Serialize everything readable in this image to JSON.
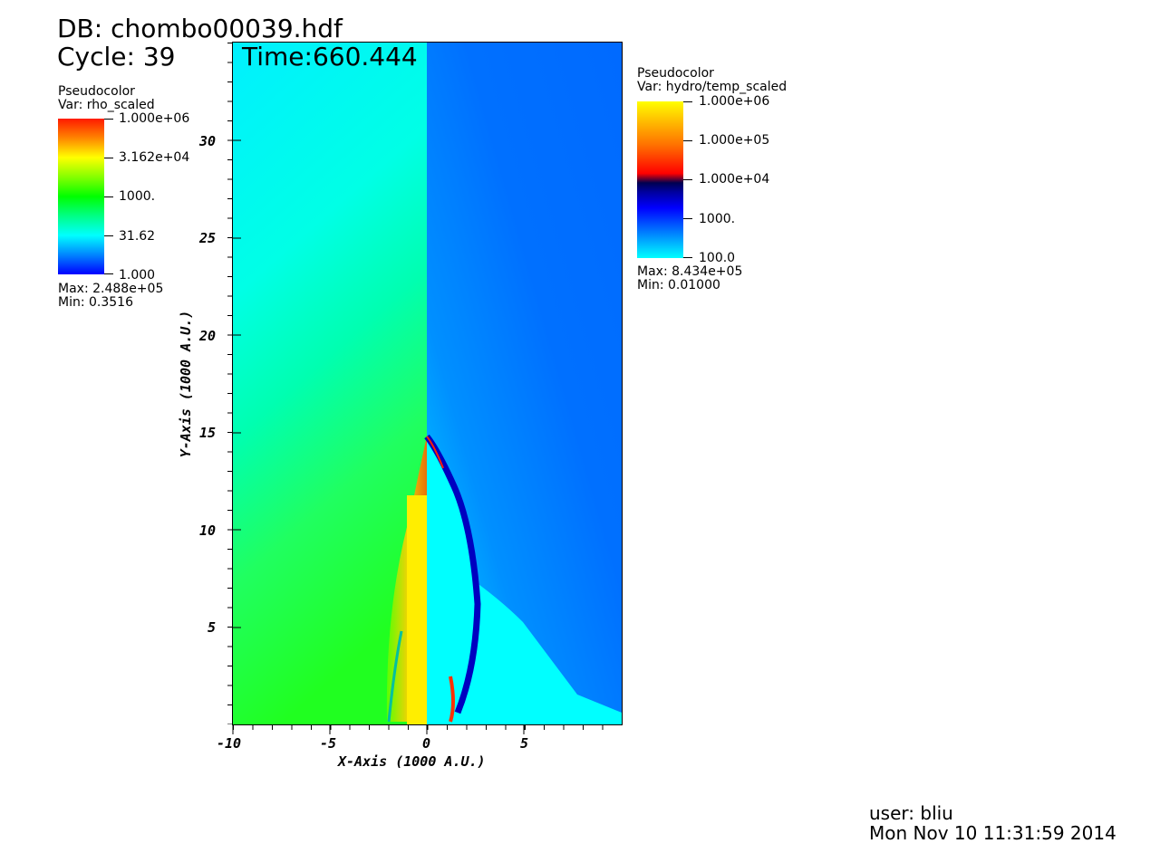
{
  "header": {
    "db": "DB: chombo00039.hdf",
    "cycle": "Cycle: 39",
    "time": "Time:660.444"
  },
  "legend_left": {
    "plot_type": "Pseudocolor",
    "var": "Var: rho_scaled",
    "labels": [
      "1.000e+06",
      "3.162e+04",
      "1000.",
      "31.62",
      "1.000"
    ],
    "max": "Max:  2.488e+05",
    "min": "Min:  0.3516",
    "colormap": [
      "#ff0000",
      "#ffff00",
      "#00ff00",
      "#00ffff",
      "#0000ff"
    ]
  },
  "legend_right": {
    "plot_type": "Pseudocolor",
    "var": "Var: hydro/temp_scaled",
    "labels": [
      "1.000e+06",
      "1.000e+05",
      "1.000e+04",
      "1000.",
      "100.0"
    ],
    "max": "Max:  8.434e+05",
    "min": "Min:  0.01000",
    "colormap": [
      "#ffff00",
      "#ff8000",
      "#ff0000",
      "#000060",
      "#0000ff",
      "#00ffff"
    ]
  },
  "axes": {
    "xlabel": "X-Axis (1000 A.U.)",
    "ylabel": "Y-Axis (1000 A.U.)",
    "xticks": [
      "-10",
      "-5",
      "0",
      "5"
    ],
    "yticks": [
      "5",
      "10",
      "15",
      "20",
      "25",
      "30"
    ],
    "xlim": [
      -10,
      10
    ],
    "ylim": [
      0,
      35
    ]
  },
  "footer": {
    "user": "user: bliu",
    "date": "Mon Nov 10 11:31:59 2014"
  }
}
